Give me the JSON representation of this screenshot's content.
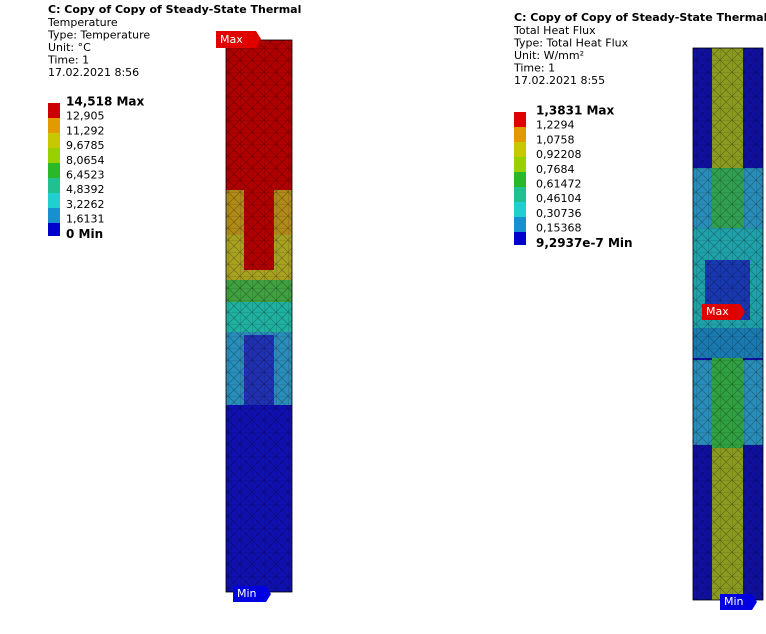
{
  "left_panel": {
    "title": "C: Copy of Copy of Steady-State Thermal",
    "lines": [
      "Temperature",
      "Type: Temperature",
      "Unit: °C",
      "Time: 1",
      "17.02.2021 8:56"
    ],
    "legend": [
      "14,518 Max",
      "12,905",
      "11,292",
      "9,6785",
      "8,0654",
      "6,4523",
      "4,8392",
      "3,2262",
      "1,6131",
      "0 Min"
    ],
    "max_tag": "Max",
    "min_tag": "Min"
  },
  "right_panel": {
    "title": "C: Copy of Copy of Steady-State Thermal",
    "lines": [
      "Total Heat Flux",
      "Type: Total Heat Flux",
      "Unit: W/mm²",
      "Time: 1",
      "17.02.2021 8:55"
    ],
    "legend": [
      "1,3831 Max",
      "1,2294",
      "1,0758",
      "0,92208",
      "0,7684",
      "0,61472",
      "0,46104",
      "0,30736",
      "0,15368",
      "9,2937e-7 Min"
    ],
    "max_tag": "Max",
    "min_tag": "Min"
  }
}
